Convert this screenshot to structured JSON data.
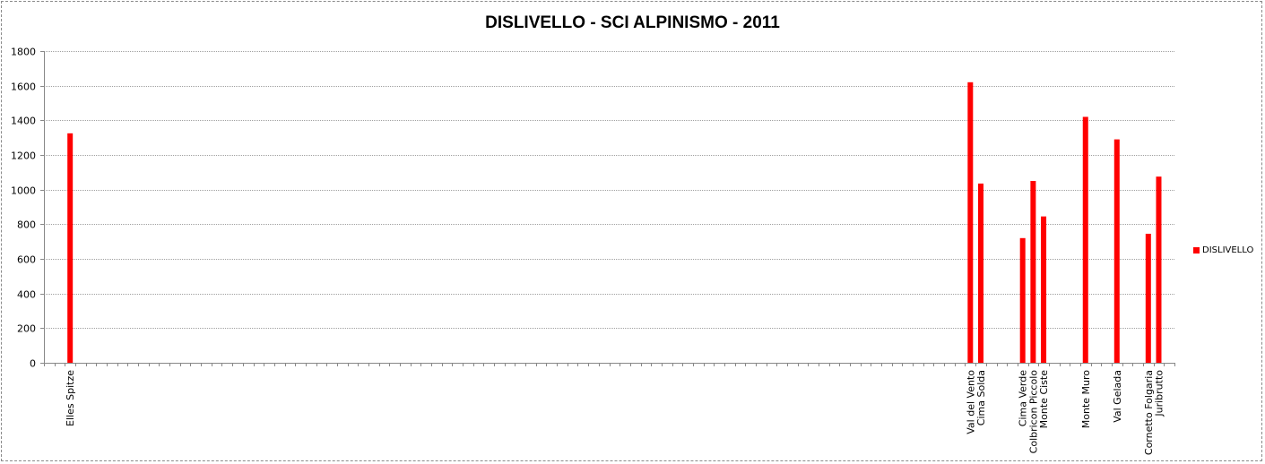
{
  "chart_data": {
    "type": "bar",
    "title": "DISLIVELLO - SCI ALPINISMO - 2011",
    "xlabel": "",
    "ylabel": "",
    "ylim": [
      0,
      1800
    ],
    "yticks": [
      "0",
      "200",
      "400",
      "600",
      "800",
      "1000",
      "1200",
      "1400",
      "1600",
      "1800"
    ],
    "grid": true,
    "legend_placement": "right",
    "category_count": 108,
    "series": [
      {
        "name": "DISLIVELLO",
        "color": "#ff0000",
        "points": [
          {
            "category": "Elles Spitze",
            "position": 3,
            "value": 1325
          },
          {
            "category": "Val del Vento",
            "position": 89,
            "value": 1620
          },
          {
            "category": "Cima Solda",
            "position": 90,
            "value": 1035
          },
          {
            "category": "Cima Verde",
            "position": 94,
            "value": 720
          },
          {
            "category": "Colbricon Piccolo",
            "position": 95,
            "value": 1050
          },
          {
            "category": "Monte Ciste",
            "position": 96,
            "value": 845
          },
          {
            "category": "Monte Muro",
            "position": 100,
            "value": 1420
          },
          {
            "category": "Val Gelada",
            "position": 103,
            "value": 1290
          },
          {
            "category": "Cornetto Folgaria",
            "position": 106,
            "value": 745
          },
          {
            "category": "Juribrutto",
            "position": 107,
            "value": 1075
          }
        ]
      }
    ]
  }
}
